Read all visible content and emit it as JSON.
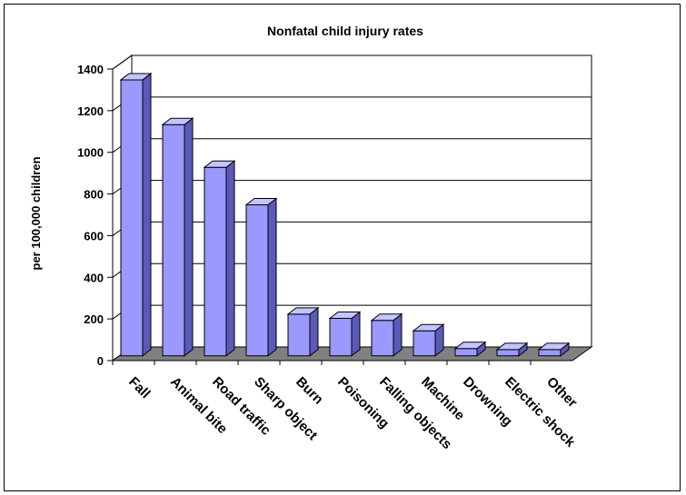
{
  "chart_data": {
    "type": "bar",
    "title": "Nonfatal child injury rates",
    "xlabel": "",
    "ylabel": "per 100,000 children",
    "ylim": [
      0,
      1400
    ],
    "yticks": [
      0,
      200,
      400,
      600,
      800,
      1000,
      1200,
      1400
    ],
    "grid": true,
    "legend": "none",
    "categories": [
      "Fall",
      "Animal bite",
      "Road traffic",
      "Sharp object",
      "Burn",
      "Poisoning",
      "Falling objects",
      "Machine",
      "Drowning",
      "Electric shock",
      "Other"
    ],
    "values": [
      1325,
      1110,
      905,
      725,
      200,
      180,
      170,
      120,
      35,
      30,
      30
    ],
    "colors": {
      "bar_front": "#9999ff",
      "bar_side": "#5a5ab8",
      "bar_top": "#c4c4ff",
      "floor": "#808080"
    }
  }
}
